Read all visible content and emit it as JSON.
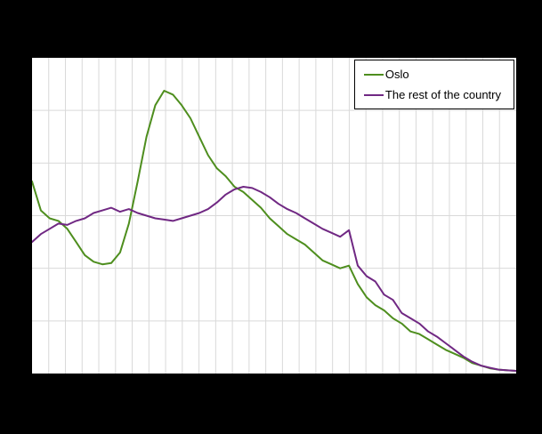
{
  "page": {
    "background_color": "#000000",
    "plot_background_color": "#ffffff",
    "gridline_color": "#d9d9d9"
  },
  "chart_data": {
    "type": "line",
    "title": "",
    "xlabel": "",
    "ylabel": "",
    "ylim": [
      0,
      12
    ],
    "grid": true,
    "legend_position": "top-right",
    "layout": {
      "y_gridline_step": 2,
      "x_gridline_intervals": 29
    },
    "series": [
      {
        "name": "Oslo",
        "color": "#4e8e1e",
        "values": [
          7.3,
          6.2,
          5.9,
          5.8,
          5.5,
          5.0,
          4.5,
          4.25,
          4.15,
          4.2,
          4.6,
          5.7,
          7.3,
          9.0,
          10.2,
          10.75,
          10.6,
          10.2,
          9.7,
          9.0,
          8.3,
          7.8,
          7.5,
          7.1,
          6.9,
          6.6,
          6.3,
          5.9,
          5.6,
          5.3,
          5.1,
          4.9,
          4.6,
          4.3,
          4.15,
          4.0,
          4.1,
          3.4,
          2.9,
          2.6,
          2.4,
          2.1,
          1.9,
          1.6,
          1.5,
          1.3,
          1.1,
          0.9,
          0.75,
          0.6,
          0.4,
          0.3,
          0.2,
          0.15,
          0.12,
          0.1
        ]
      },
      {
        "name": "The rest of the country",
        "color": "#702883",
        "values": [
          5.0,
          5.3,
          5.5,
          5.7,
          5.65,
          5.8,
          5.9,
          6.1,
          6.2,
          6.3,
          6.15,
          6.25,
          6.1,
          6.0,
          5.9,
          5.85,
          5.8,
          5.9,
          6.0,
          6.1,
          6.25,
          6.5,
          6.8,
          7.0,
          7.1,
          7.05,
          6.9,
          6.7,
          6.45,
          6.25,
          6.1,
          5.9,
          5.7,
          5.5,
          5.35,
          5.2,
          5.45,
          4.1,
          3.7,
          3.5,
          3.0,
          2.8,
          2.3,
          2.1,
          1.9,
          1.6,
          1.4,
          1.15,
          0.9,
          0.65,
          0.45,
          0.3,
          0.22,
          0.15,
          0.12,
          0.1
        ]
      }
    ]
  }
}
